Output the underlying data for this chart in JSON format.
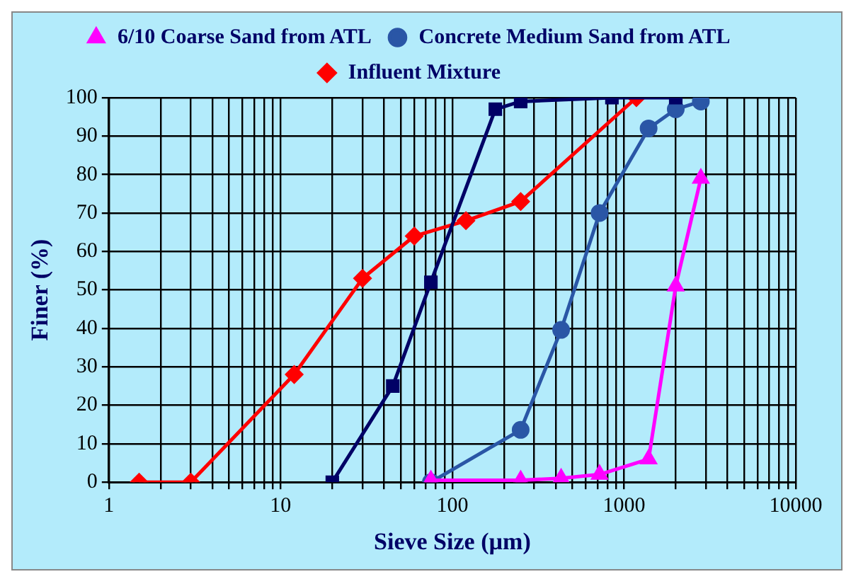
{
  "chart_data": {
    "type": "line",
    "xlabel": "Sieve Size (µm)",
    "ylabel": "Finer (%)",
    "log": "x",
    "grid": true,
    "legend": "top",
    "xlim": [
      1,
      10000
    ],
    "ylim": [
      0,
      100
    ],
    "xticks": [
      1,
      {
        "value": 2,
        "label": null
      },
      {
        "value": 3,
        "label": null
      },
      {
        "value": 4,
        "label": null
      },
      {
        "value": 5,
        "label": null
      },
      {
        "value": 6,
        "label": null
      },
      {
        "value": 7,
        "label": null
      },
      {
        "value": 8,
        "label": null
      },
      {
        "value": 9,
        "label": null
      },
      10,
      {
        "value": 20,
        "label": null
      },
      {
        "value": 30,
        "label": null
      },
      {
        "value": 40,
        "label": null
      },
      {
        "value": 50,
        "label": null
      },
      {
        "value": 60,
        "label": null
      },
      {
        "value": 70,
        "label": null
      },
      {
        "value": 80,
        "label": null
      },
      {
        "value": 90,
        "label": null
      },
      100,
      {
        "value": 200,
        "label": null
      },
      {
        "value": 300,
        "label": null
      },
      {
        "value": 400,
        "label": null
      },
      {
        "value": 500,
        "label": null
      },
      {
        "value": 600,
        "label": null
      },
      {
        "value": 700,
        "label": null
      },
      {
        "value": 800,
        "label": null
      },
      {
        "value": 900,
        "label": null
      },
      1000,
      {
        "value": 2000,
        "label": null
      },
      {
        "value": 3000,
        "label": null
      },
      {
        "value": 4000,
        "label": null
      },
      {
        "value": 5000,
        "label": null
      },
      {
        "value": 6000,
        "label": null
      },
      {
        "value": 7000,
        "label": null
      },
      {
        "value": 8000,
        "label": null
      },
      {
        "value": 9000,
        "label": null
      },
      10000
    ],
    "yticks": [
      0,
      10,
      20,
      30,
      40,
      50,
      60,
      70,
      80,
      90,
      100
    ],
    "series": [
      {
        "color": "#000066",
        "marker": "square",
        "x": [
          20,
          45,
          75,
          178,
          250,
          850,
          2000
        ],
        "values": [
          0,
          25,
          52,
          97,
          99,
          100,
          100
        ]
      },
      {
        "name": "6/10 Coarse Sand from ATL",
        "color": "#ff00ff",
        "marker": "triangle",
        "x": [
          75,
          250,
          430,
          720,
          1390,
          2000,
          2800
        ],
        "values": [
          0.5,
          0.5,
          1,
          2,
          6,
          51,
          79
        ]
      },
      {
        "name": "Concrete Medium Sand from ATL",
        "color": "#2a56a6",
        "marker": "circle",
        "x": [
          75,
          250,
          430,
          720,
          1390,
          2000,
          2800
        ],
        "values": [
          0,
          13.6,
          39.6,
          70,
          92,
          97,
          99
        ]
      },
      {
        "name": "Influent Mixture",
        "color": "#ff0000",
        "marker": "diamond",
        "x": [
          1.5,
          3,
          12,
          30,
          60,
          120,
          250,
          1180
        ],
        "values": [
          0,
          0,
          28,
          53,
          64,
          68,
          73,
          100
        ]
      }
    ]
  }
}
